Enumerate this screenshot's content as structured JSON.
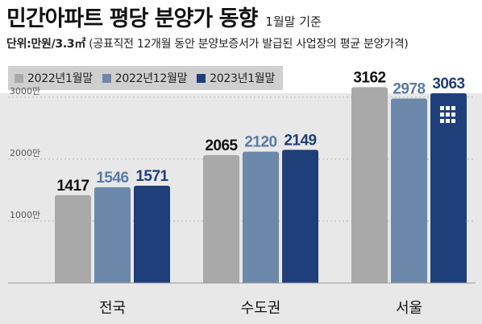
{
  "header": {
    "title": "민간아파트 평당 분양가 동향",
    "title_note": "1월말 기준",
    "subtitle_unit": "단위:만원/3.3㎡",
    "subtitle_source": "(공표직전 12개월 동안 분양보증서가 발급된 사업장의 평균 분양가격)"
  },
  "chart_data": {
    "type": "bar",
    "title": "민간아파트 평당 분양가 동향",
    "categories": [
      "전국",
      "수도권",
      "서울"
    ],
    "series": [
      {
        "name": "2022년1월말",
        "values": [
          1417,
          2065,
          3162
        ],
        "color": "#a9a9a9",
        "label_color": "#111111"
      },
      {
        "name": "2022년12월말",
        "values": [
          1546,
          2120,
          2978
        ],
        "color": "#6b88aa",
        "label_color": "#5a7aa3"
      },
      {
        "name": "2023년1월말",
        "values": [
          1571,
          2149,
          3063
        ],
        "color": "#1f3f7a",
        "label_color": "#1f3f7a"
      }
    ],
    "yticks": [
      1000,
      2000,
      3000
    ],
    "ytick_labels": [
      "1000만",
      "2000만",
      "3000만"
    ],
    "ylim": [
      0,
      3400
    ],
    "grid": true,
    "legend_position": "top-left",
    "xlabel": "",
    "ylabel": ""
  },
  "icons": {
    "building": "building-icon"
  }
}
